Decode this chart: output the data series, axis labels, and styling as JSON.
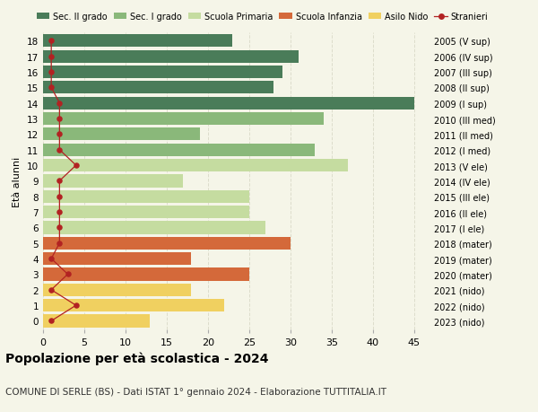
{
  "ages": [
    18,
    17,
    16,
    15,
    14,
    13,
    12,
    11,
    10,
    9,
    8,
    7,
    6,
    5,
    4,
    3,
    2,
    1,
    0
  ],
  "right_labels": [
    "2005 (V sup)",
    "2006 (IV sup)",
    "2007 (III sup)",
    "2008 (II sup)",
    "2009 (I sup)",
    "2010 (III med)",
    "2011 (II med)",
    "2012 (I med)",
    "2013 (V ele)",
    "2014 (IV ele)",
    "2015 (III ele)",
    "2016 (II ele)",
    "2017 (I ele)",
    "2018 (mater)",
    "2019 (mater)",
    "2020 (mater)",
    "2021 (nido)",
    "2022 (nido)",
    "2023 (nido)"
  ],
  "bar_values": [
    23,
    31,
    29,
    28,
    45,
    34,
    19,
    33,
    37,
    17,
    25,
    25,
    27,
    30,
    18,
    25,
    18,
    22,
    13
  ],
  "bar_colors": [
    "#4a7c59",
    "#4a7c59",
    "#4a7c59",
    "#4a7c59",
    "#4a7c59",
    "#8ab87a",
    "#8ab87a",
    "#8ab87a",
    "#c5dca0",
    "#c5dca0",
    "#c5dca0",
    "#c5dca0",
    "#c5dca0",
    "#d4693a",
    "#d4693a",
    "#d4693a",
    "#f0d060",
    "#f0d060",
    "#f0d060"
  ],
  "stranieri_values": [
    1,
    1,
    1,
    1,
    2,
    2,
    2,
    2,
    4,
    2,
    2,
    2,
    2,
    2,
    1,
    3,
    1,
    4,
    1
  ],
  "stranieri_color": "#b22222",
  "title": "Popolazione per età scolastica - 2024",
  "subtitle": "COMUNE DI SERLE (BS) - Dati ISTAT 1° gennaio 2024 - Elaborazione TUTTITALIA.IT",
  "ylabel_left": "Età alunni",
  "xlim": [
    0,
    47
  ],
  "xticks": [
    0,
    5,
    10,
    15,
    20,
    25,
    30,
    35,
    40,
    45
  ],
  "legend_labels": [
    "Sec. II grado",
    "Sec. I grado",
    "Scuola Primaria",
    "Scuola Infanzia",
    "Asilo Nido",
    "Stranieri"
  ],
  "legend_colors": [
    "#4a7c59",
    "#8ab87a",
    "#c5dca0",
    "#d4693a",
    "#f0d060",
    "#b22222"
  ],
  "bg_color": "#f5f5e8",
  "grid_color": "#ddddcc",
  "bar_height": 0.82
}
